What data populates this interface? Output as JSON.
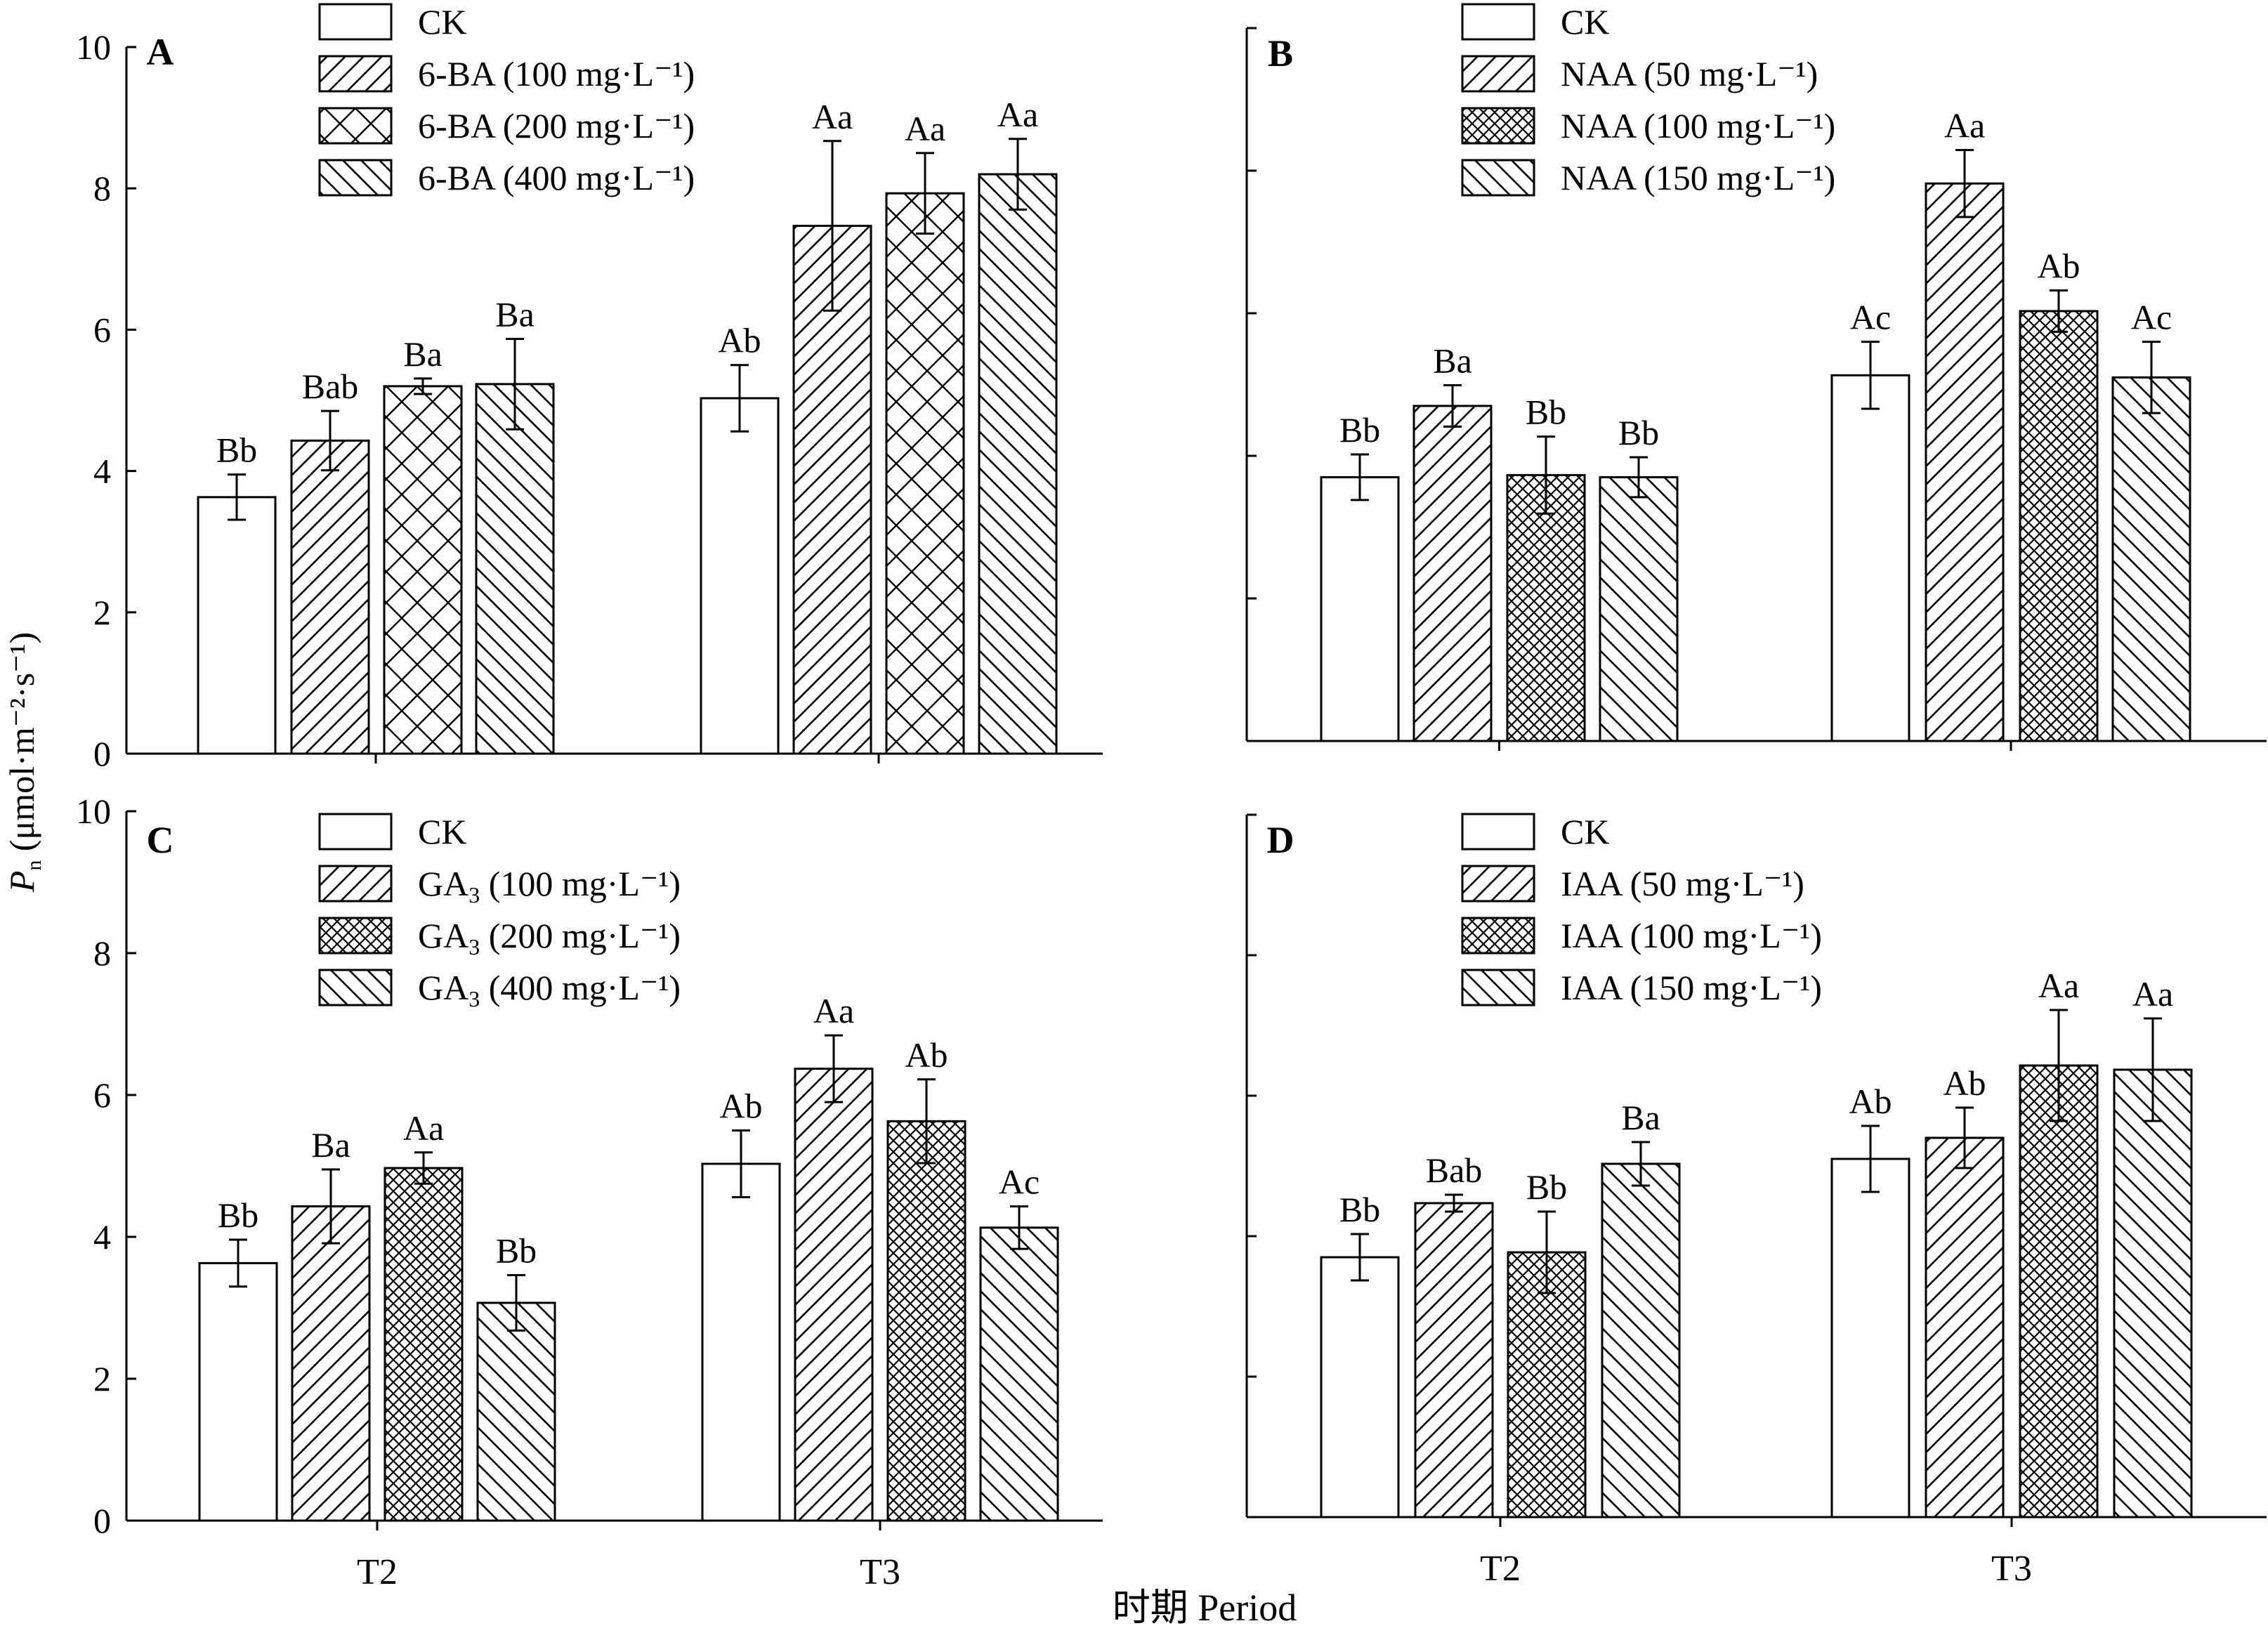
{
  "figure": {
    "y_axis_label": "P",
    "y_axis_label_sub": "n",
    "y_axis_unit": " (μmol·m⁻²·s⁻¹)",
    "x_axis_label": "时期 Period"
  },
  "colors": {
    "ink": "#000000",
    "background": "#ffffff"
  },
  "chart_data": [
    {
      "type": "bar",
      "panel_label": "A",
      "categories": [
        "T2",
        "T3"
      ],
      "ylim": [
        0,
        10
      ],
      "yticks": [
        "0",
        "2",
        "4",
        "6",
        "8",
        "10"
      ],
      "series": [
        {
          "name": "CK",
          "pattern": "empty",
          "values": [
            3.63,
            5.03
          ],
          "errors": [
            0.32,
            0.47
          ],
          "letters": [
            "Bb",
            "Ab"
          ]
        },
        {
          "name": "6-BA (100 mg·L⁻¹)",
          "pattern": "diag-up",
          "values": [
            4.43,
            7.47
          ],
          "errors": [
            0.42,
            1.2
          ],
          "letters": [
            "Bab",
            "Aa"
          ]
        },
        {
          "name": "6-BA (200 mg·L⁻¹)",
          "pattern": "cross-wide",
          "values": [
            5.2,
            7.93
          ],
          "errors": [
            0.11,
            0.57
          ],
          "letters": [
            "Ba",
            "Aa"
          ]
        },
        {
          "name": "6-BA (400 mg·L⁻¹)",
          "pattern": "diag-down",
          "values": [
            5.23,
            8.2
          ],
          "errors": [
            0.64,
            0.5
          ],
          "letters": [
            "Ba",
            "Aa"
          ]
        }
      ]
    },
    {
      "type": "bar",
      "panel_label": "B",
      "categories": [
        "T2",
        "T3"
      ],
      "ylim": [
        0,
        10
      ],
      "yticks": [
        "",
        "",
        "",
        "",
        "",
        ""
      ],
      "series": [
        {
          "name": "CK",
          "pattern": "empty",
          "values": [
            3.7,
            5.13
          ],
          "errors": [
            0.32,
            0.47
          ],
          "letters": [
            "Bb",
            "Ac"
          ]
        },
        {
          "name": "NAA (50 mg·L⁻¹)",
          "pattern": "diag-up",
          "values": [
            4.7,
            7.82
          ],
          "errors": [
            0.29,
            0.47
          ],
          "letters": [
            "Ba",
            "Aa"
          ]
        },
        {
          "name": "NAA (100 mg·L⁻¹)",
          "pattern": "cross-dense",
          "values": [
            3.73,
            6.03
          ],
          "errors": [
            0.54,
            0.29
          ],
          "letters": [
            "Bb",
            "Ab"
          ]
        },
        {
          "name": "NAA (150 mg·L⁻¹)",
          "pattern": "diag-down",
          "values": [
            3.7,
            5.1
          ],
          "errors": [
            0.28,
            0.5
          ],
          "letters": [
            "Bb",
            "Ac"
          ]
        }
      ]
    },
    {
      "type": "bar",
      "panel_label": "C",
      "categories": [
        "T2",
        "T3"
      ],
      "ylim": [
        0,
        10
      ],
      "yticks": [
        "0",
        "2",
        "4",
        "6",
        "8",
        "10"
      ],
      "series": [
        {
          "name": "GA3 (100 mg·L⁻¹)",
          "pattern": "diag-up",
          "values": [
            4.43,
            6.37
          ],
          "errors": [
            0.52,
            0.47
          ],
          "letters": [
            "Ba",
            "Aa"
          ]
        },
        {
          "name": "CK",
          "pattern": "empty",
          "values": [
            3.63,
            5.03
          ],
          "errors": [
            0.33,
            0.47
          ],
          "letters": [
            "Bb",
            "Ab"
          ]
        },
        {
          "name": "GA3 (200 mg·L⁻¹)",
          "pattern": "cross-dense",
          "values": [
            4.97,
            5.63
          ],
          "errors": [
            0.22,
            0.59
          ],
          "letters": [
            "Aa",
            "Ab"
          ]
        },
        {
          "name": "GA3 (400 mg·L⁻¹)",
          "pattern": "diag-down",
          "values": [
            3.07,
            4.13
          ],
          "errors": [
            0.39,
            0.3
          ],
          "letters": [
            "Bb",
            "Ac"
          ]
        }
      ],
      "legend_order": [
        1,
        0,
        2,
        3
      ],
      "legend_names": [
        "CK",
        "GA3 (100 mg·L⁻¹)",
        "GA3 (200 mg·L⁻¹)",
        "GA3 (400 mg·L⁻¹)"
      ]
    },
    {
      "type": "bar",
      "panel_label": "D",
      "categories": [
        "T2",
        "T3"
      ],
      "ylim": [
        0,
        10
      ],
      "yticks": [
        "",
        "",
        "",
        "",
        "",
        ""
      ],
      "series": [
        {
          "name": "CK",
          "pattern": "empty",
          "values": [
            3.7,
            5.1
          ],
          "errors": [
            0.33,
            0.47
          ],
          "letters": [
            "Bb",
            "Ab"
          ]
        },
        {
          "name": "IAA (50 mg·L⁻¹)",
          "pattern": "diag-up",
          "values": [
            4.47,
            5.4
          ],
          "errors": [
            0.12,
            0.43
          ],
          "letters": [
            "Bab",
            "Ab"
          ]
        },
        {
          "name": "IAA (100 mg·L⁻¹)",
          "pattern": "cross-dense",
          "values": [
            3.77,
            6.43
          ],
          "errors": [
            0.58,
            0.79
          ],
          "letters": [
            "Bb",
            "Aa"
          ]
        },
        {
          "name": "IAA (150 mg·L⁻¹)",
          "pattern": "diag-down",
          "values": [
            5.03,
            6.37
          ],
          "errors": [
            0.31,
            0.73
          ],
          "letters": [
            "Ba",
            "Aa"
          ]
        }
      ]
    }
  ]
}
